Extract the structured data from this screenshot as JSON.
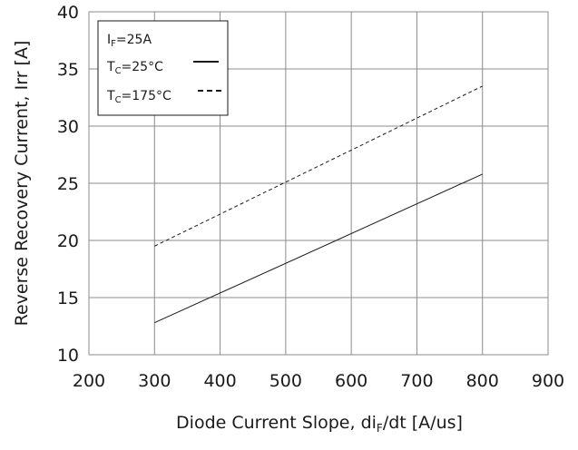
{
  "chart_data": {
    "type": "line",
    "xlabel_main": "Diode Current Slope, di",
    "xlabel_sub": "F",
    "xlabel_tail": "/dt [A/us]",
    "ylabel": "Reverse Recovery Current, Irr [A]",
    "xlim": [
      200,
      900
    ],
    "ylim": [
      10,
      40
    ],
    "xticks": [
      200,
      300,
      400,
      500,
      600,
      700,
      800,
      900
    ],
    "yticks": [
      10,
      15,
      20,
      25,
      30,
      35,
      40
    ],
    "grid": true,
    "legend_position": "top-left",
    "legend_header": {
      "main": "I",
      "sub": "F",
      "tail": "=25A"
    },
    "series": [
      {
        "name_main": "T",
        "name_sub": "C",
        "name_tail": "=25°C",
        "style": "solid",
        "color": "#1a1a1a",
        "x": [
          300,
          800
        ],
        "y": [
          12.8,
          25.8
        ]
      },
      {
        "name_main": "T",
        "name_sub": "C",
        "name_tail": "=175°C",
        "style": "dashed",
        "color": "#1a1a1a",
        "x": [
          300,
          800
        ],
        "y": [
          19.5,
          33.5
        ]
      }
    ]
  }
}
